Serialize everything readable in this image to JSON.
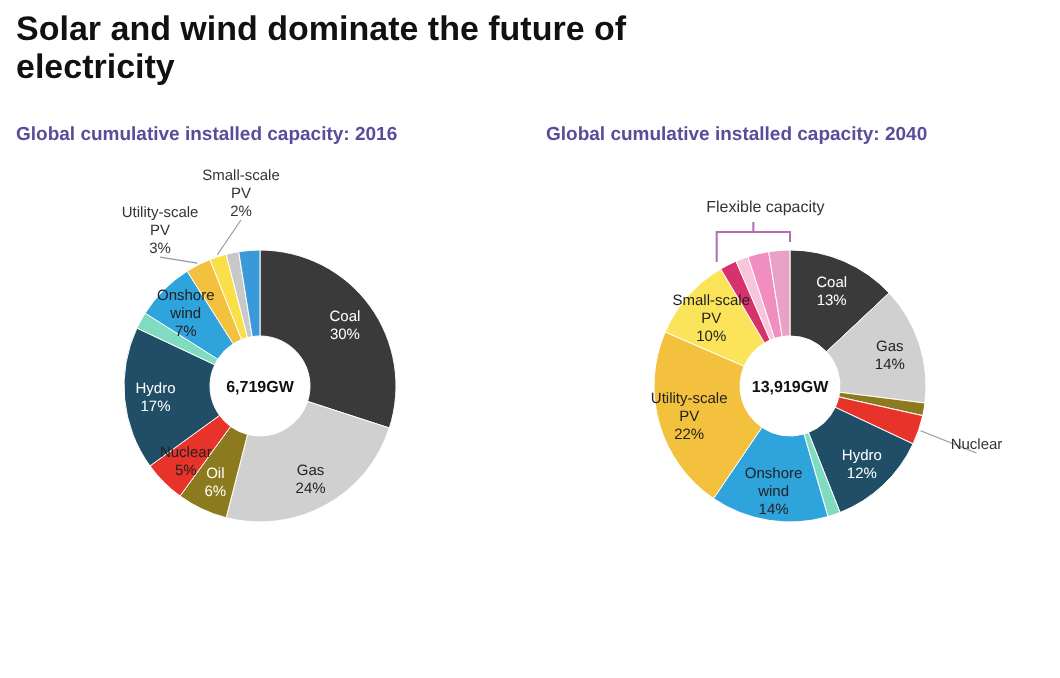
{
  "chart_data": [
    {
      "type": "donut",
      "title": "Solar and wind dominate the future of electricity",
      "subtitle": "Global cumulative installed capacity: 2016",
      "categories": [
        "Coal",
        "Gas",
        "Oil",
        "Nuclear",
        "Hydro",
        null,
        "Onshore wind",
        "Utility-scale PV",
        "Small-scale PV",
        null,
        null
      ],
      "values": [
        30,
        24,
        6,
        5,
        17,
        2,
        7,
        3,
        2,
        1.5,
        2.5
      ],
      "value_labels": [
        "30%",
        "24%",
        "6%",
        "5%",
        "17%",
        null,
        "7%",
        "3%",
        "2%",
        null,
        null
      ],
      "colors": [
        "#3a3a3a",
        "#d0d0d0",
        "#8b7a1e",
        "#e8332a",
        "#1f4e66",
        "#7fdcc0",
        "#2ea3dc",
        "#f4c13f",
        "#f9e04b",
        "#c8c8c8",
        "#3a9ad9"
      ],
      "annotations": [
        "6,719GW"
      ]
    },
    {
      "type": "donut",
      "subtitle": "Global cumulative installed capacity: 2040",
      "categories": [
        "Coal",
        "Gas",
        null,
        "Nuclear",
        "Hydro",
        null,
        "Onshore wind",
        "Utility-scale PV",
        "Small-scale PV",
        null,
        null,
        null,
        null
      ],
      "values": [
        13,
        14,
        1.5,
        3.5,
        12,
        1.5,
        14,
        22,
        10,
        2,
        1.5,
        2.5,
        2.5
      ],
      "value_labels": [
        "13%",
        "14%",
        null,
        null,
        "12%",
        null,
        "14%",
        "22%",
        "10%",
        null,
        null,
        null,
        null
      ],
      "colors": [
        "#3a3a3a",
        "#d0d0d0",
        "#8b7a1e",
        "#e8332a",
        "#1f4e66",
        "#7fdcc0",
        "#2ea3dc",
        "#f4c13f",
        "#fbe35a",
        "#d6336c",
        "#f7c6dc",
        "#f08fbf",
        "#e9a1c8"
      ],
      "annotations": [
        "13,919GW",
        "Flexible capacity"
      ]
    }
  ]
}
